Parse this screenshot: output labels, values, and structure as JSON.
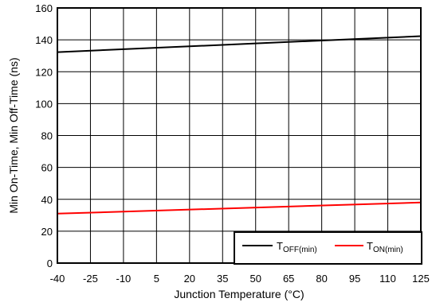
{
  "chart_data": {
    "type": "line",
    "title": "",
    "xlabel": "Junction Temperature (°C)",
    "ylabel": "Min On-Time, Min Off-Time (ns)",
    "x_ticks": [
      -40,
      -25,
      -10,
      5,
      20,
      35,
      50,
      65,
      80,
      95,
      110,
      125
    ],
    "y_ticks": [
      0,
      20,
      40,
      60,
      80,
      100,
      120,
      140,
      160
    ],
    "xlim": [
      -40,
      125
    ],
    "ylim": [
      0,
      160
    ],
    "grid": true,
    "legend_position": "bottom-right",
    "series": [
      {
        "name_main": "T",
        "name_sub": "OFF(min)",
        "color": "#000000",
        "x": [
          -40,
          125
        ],
        "y": [
          132.3,
          142.3
        ]
      },
      {
        "name_main": "T",
        "name_sub": "ON(min)",
        "color": "#ff0000",
        "x": [
          -40,
          125
        ],
        "y": [
          31.0,
          38.0
        ]
      }
    ]
  }
}
